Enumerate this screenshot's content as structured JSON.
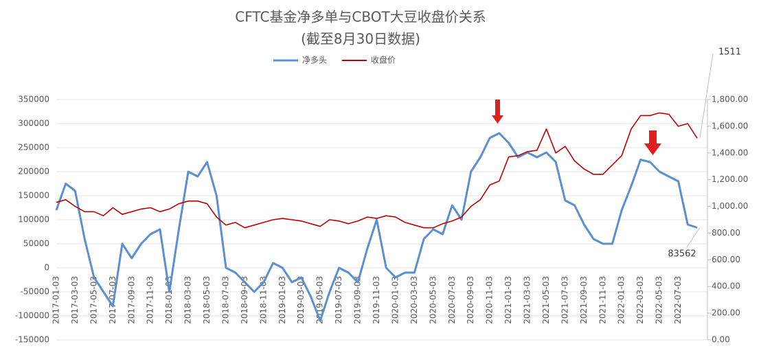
{
  "chart_data": {
    "type": "line",
    "title": "CFTC基金净多单与CBOT大豆收盘价关系",
    "subtitle": "(截至8月30日数据)",
    "categories": [
      "2017-01-03",
      null,
      "2017-03-03",
      null,
      "2017-05-03",
      null,
      "2017-07-03",
      null,
      "2017-09-03",
      null,
      "2017-11-03",
      null,
      "2018-01-03",
      null,
      "2018-03-03",
      null,
      "2018-05-03",
      null,
      "2018-07-03",
      null,
      "2018-09-03",
      null,
      "2018-11-03",
      null,
      "2019-01-03",
      null,
      "2019-03-03",
      null,
      "2019-05-03",
      null,
      "2019-07-03",
      null,
      "2019-09-03",
      null,
      "2019-11-03",
      null,
      "2020-01-03",
      null,
      "2020-03-03",
      null,
      "2020-05-03",
      null,
      "2020-07-03",
      null,
      "2020-09-03",
      null,
      "2020-11-03",
      null,
      "2021-01-03",
      null,
      "2021-03-03",
      null,
      "2021-05-03",
      null,
      "2021-07-03",
      null,
      "2021-09-03",
      null,
      "2021-11-03",
      null,
      "2022-01-03",
      null,
      "2022-03-03",
      null,
      "2022-05-03",
      null,
      "2022-07-03",
      null,
      null
    ],
    "series": [
      {
        "name": "净多头",
        "color": "#5a8fd1",
        "values": [
          120000,
          175000,
          160000,
          60000,
          -20000,
          -50000,
          -80000,
          50000,
          20000,
          50000,
          70000,
          80000,
          -50000,
          80000,
          200000,
          190000,
          220000,
          150000,
          0,
          -10000,
          -30000,
          -50000,
          -30000,
          10000,
          0,
          -30000,
          -20000,
          -60000,
          -110000,
          -50000,
          0,
          -10000,
          -30000,
          40000,
          100000,
          0,
          -20000,
          -10000,
          -10000,
          60000,
          80000,
          70000,
          130000,
          100000,
          200000,
          230000,
          270000,
          280000,
          260000,
          230000,
          240000,
          230000,
          240000,
          220000,
          140000,
          130000,
          90000,
          60000,
          50000,
          50000,
          120000,
          170000,
          225000,
          220000,
          200000,
          190000,
          180000,
          90000,
          83562
        ]
      },
      {
        "name": "收盘价",
        "color": "#c00000",
        "axis": "y2",
        "values": [
          1030,
          1050,
          1000,
          960,
          960,
          930,
          990,
          940,
          960,
          980,
          990,
          960,
          980,
          1020,
          1040,
          1040,
          1020,
          920,
          860,
          880,
          840,
          860,
          880,
          900,
          910,
          900,
          890,
          870,
          850,
          900,
          890,
          870,
          890,
          920,
          910,
          930,
          920,
          880,
          860,
          840,
          840,
          870,
          890,
          920,
          1000,
          1050,
          1160,
          1190,
          1370,
          1380,
          1410,
          1420,
          1580,
          1400,
          1450,
          1340,
          1280,
          1240,
          1240,
          1310,
          1380,
          1580,
          1680,
          1680,
          1700,
          1690,
          1600,
          1620,
          1511
        ]
      }
    ],
    "ylim": [
      -150000,
      350000
    ],
    "yticks": [
      -150000,
      -100000,
      -50000,
      0,
      50000,
      100000,
      150000,
      200000,
      250000,
      300000,
      350000
    ],
    "y2lim": [
      0,
      1800
    ],
    "y2ticks": [
      {
        "value": 0,
        "label": "0.00"
      },
      {
        "value": 200,
        "label": "200.00"
      },
      {
        "value": 400,
        "label": "400.00"
      },
      {
        "value": 600,
        "label": "600.00"
      },
      {
        "value": 800,
        "label": "800.00"
      },
      {
        "value": 1000,
        "label": "1,000.00"
      },
      {
        "value": 1200,
        "label": "1,200.00"
      },
      {
        "value": 1400,
        "label": "1,400.00"
      },
      {
        "value": 1600,
        "label": "1,600.00"
      },
      {
        "value": 1800,
        "label": "1,800.00"
      }
    ],
    "grid": true,
    "legend": "top"
  }
}
